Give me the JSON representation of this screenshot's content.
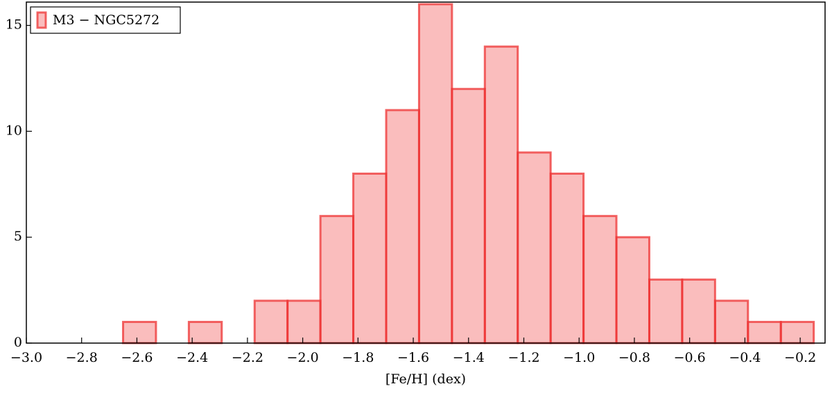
{
  "chart_data": {
    "type": "histogram",
    "xlabel": "[Fe/H] (dex)",
    "series": [
      {
        "name": "M3 − NGC5272",
        "color": "#ee3333",
        "bins": [
          -2.65,
          -2.531,
          -2.412,
          -2.293,
          -2.174,
          -2.055,
          -1.936,
          -1.817,
          -1.698,
          -1.579,
          -1.46,
          -1.341,
          -1.222,
          -1.103,
          -0.984,
          -0.865,
          -0.746,
          -0.627,
          -0.508,
          -0.389,
          -0.27,
          -0.151
        ],
        "values": [
          1,
          0,
          1,
          0,
          2,
          2,
          6,
          8,
          11,
          16,
          12,
          14,
          9,
          8,
          6,
          5,
          3,
          3,
          2,
          1,
          1
        ]
      }
    ],
    "xlim": [
      -3.0,
      -0.11
    ],
    "ylim": [
      0,
      16.1
    ],
    "xticks": [
      {
        "value": -3.0,
        "label": "−3.0"
      },
      {
        "value": -2.8,
        "label": "−2.8"
      },
      {
        "value": -2.6,
        "label": "−2.6"
      },
      {
        "value": -2.4,
        "label": "−2.4"
      },
      {
        "value": -2.2,
        "label": "−2.2"
      },
      {
        "value": -2.0,
        "label": "−2.0"
      },
      {
        "value": -1.8,
        "label": "−1.8"
      },
      {
        "value": -1.6,
        "label": "−1.6"
      },
      {
        "value": -1.4,
        "label": "−1.4"
      },
      {
        "value": -1.2,
        "label": "−1.2"
      },
      {
        "value": -1.0,
        "label": "−1.0"
      },
      {
        "value": -0.8,
        "label": "−0.8"
      },
      {
        "value": -0.6,
        "label": "−0.6"
      },
      {
        "value": -0.4,
        "label": "−0.4"
      },
      {
        "value": -0.2,
        "label": "−0.2"
      }
    ],
    "yticks": [
      0,
      5,
      10,
      15
    ],
    "legend": "upper left",
    "grid": false
  }
}
